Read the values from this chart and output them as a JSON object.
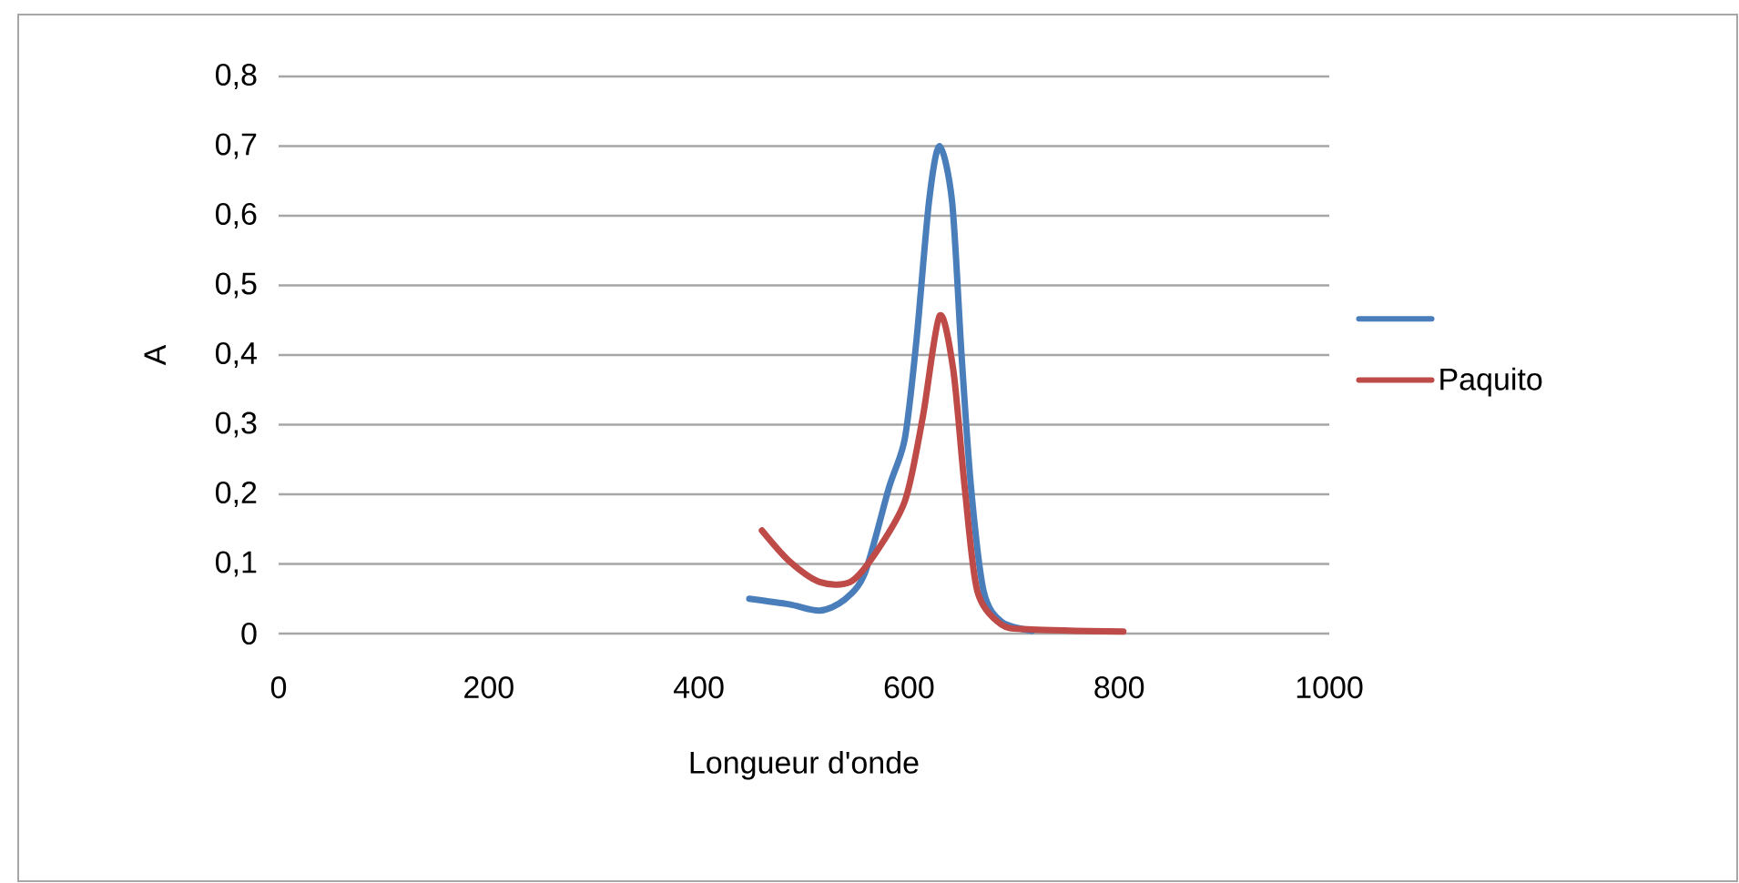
{
  "chart_data": {
    "type": "line",
    "xlabel": "Longueur d'onde",
    "ylabel": "A",
    "xlim": [
      0,
      1000
    ],
    "xticks": [
      0,
      200,
      400,
      600,
      800,
      1000
    ],
    "ylim": [
      0,
      0.8
    ],
    "yticks": [
      {
        "value": 0,
        "label": "0"
      },
      {
        "value": 0.1,
        "label": "0,1"
      },
      {
        "value": 0.2,
        "label": "0,2"
      },
      {
        "value": 0.3,
        "label": "0,3"
      },
      {
        "value": 0.4,
        "label": "0,4"
      },
      {
        "value": 0.5,
        "label": "0,5"
      },
      {
        "value": 0.6,
        "label": "0,6"
      },
      {
        "value": 0.7,
        "label": "0,7"
      },
      {
        "value": 0.8,
        "label": "0,8"
      }
    ],
    "grid": "y",
    "legend": "right",
    "marker": "none",
    "line_style": "solid",
    "series": [
      {
        "color": "#4a7ebb",
        "x": [
          448,
          486,
          515,
          538,
          558,
          581,
          596,
          607,
          619,
          629,
          641,
          650,
          659,
          671,
          688,
          717
        ],
        "values": [
          0.05,
          0.042,
          0.033,
          0.048,
          0.087,
          0.21,
          0.28,
          0.42,
          0.62,
          0.7,
          0.62,
          0.4,
          0.21,
          0.061,
          0.017,
          0.004
        ]
      },
      {
        "name": "Paquito",
        "color": "#be4b48",
        "x": [
          460,
          486,
          515,
          544,
          567,
          596,
          613,
          629,
          642,
          653,
          665,
          688,
          717,
          804
        ],
        "values": [
          0.148,
          0.104,
          0.074,
          0.074,
          0.113,
          0.19,
          0.31,
          0.456,
          0.38,
          0.21,
          0.061,
          0.013,
          0.006,
          0.003
        ]
      }
    ]
  }
}
